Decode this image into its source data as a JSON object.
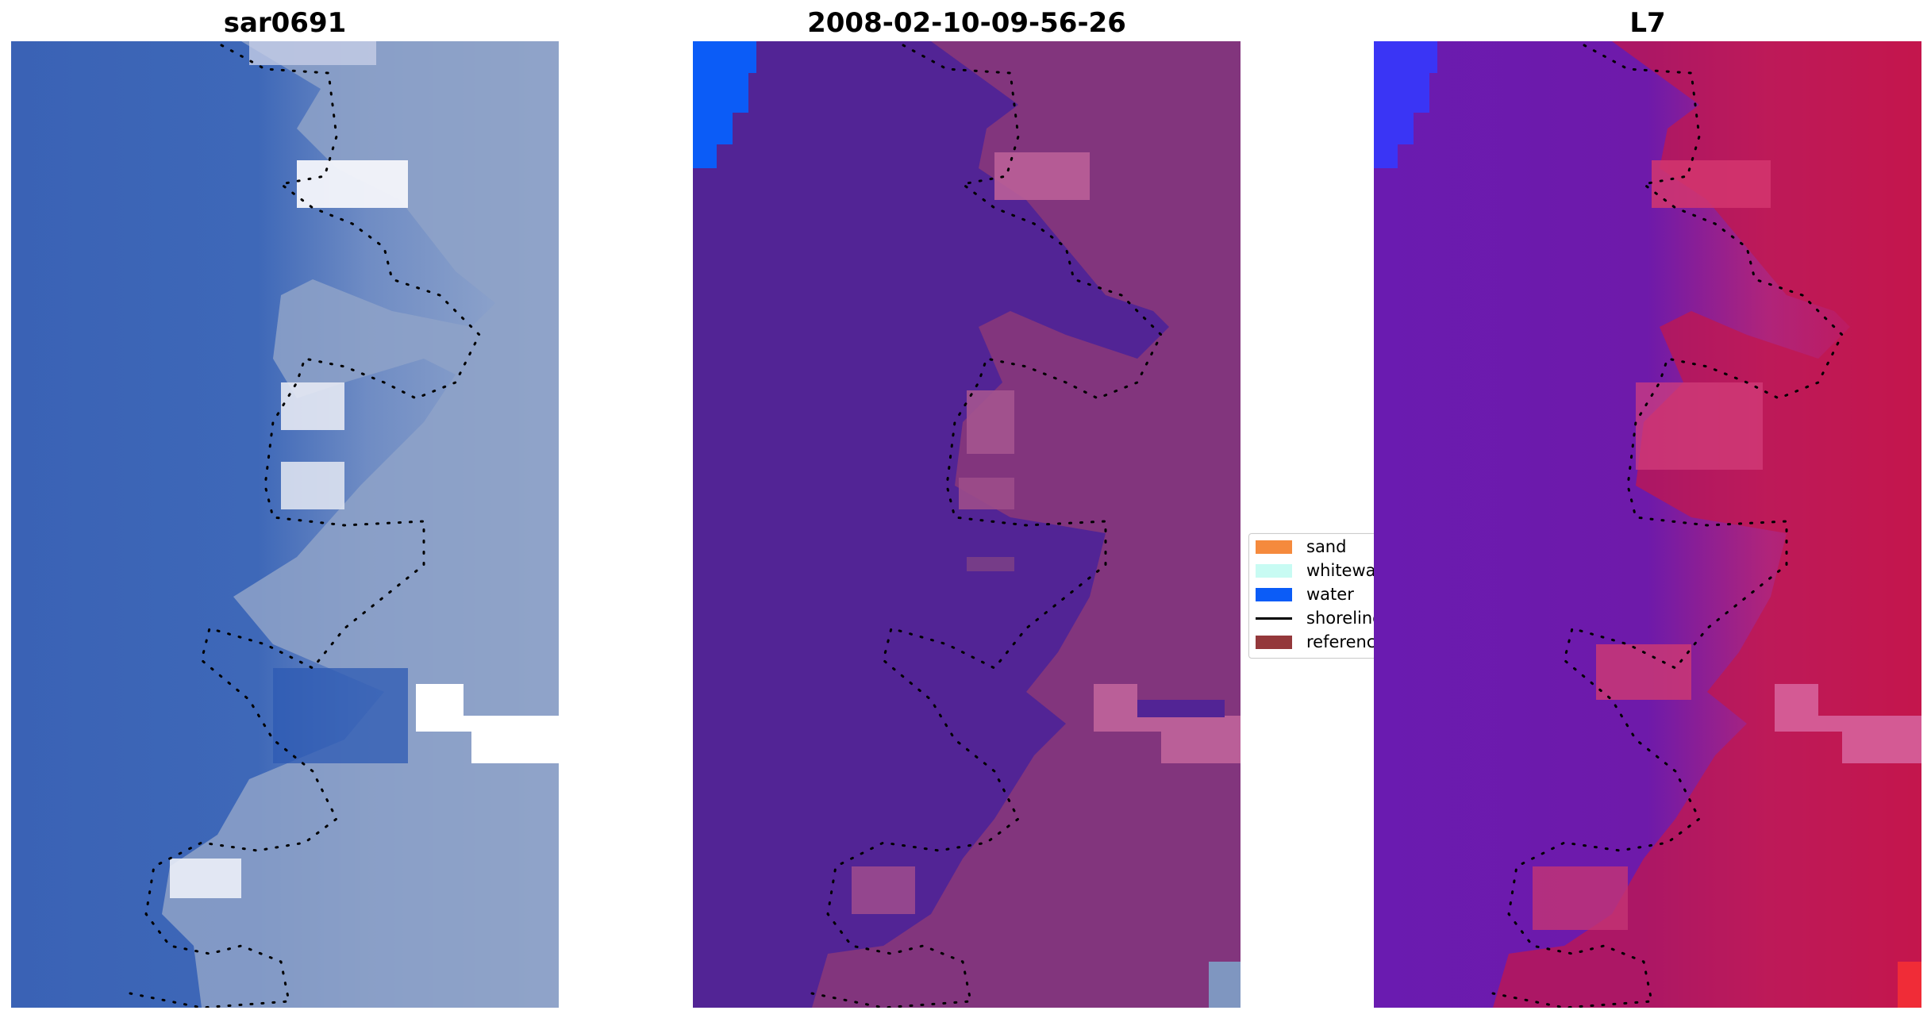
{
  "panels": [
    {
      "title": "sar0691",
      "icon": "rgb-image"
    },
    {
      "title": "2008-02-10-09-56-26",
      "icon": "classified-image"
    },
    {
      "title": "L7",
      "icon": "mndwi-image"
    }
  ],
  "legend": {
    "items": [
      {
        "label": "sand",
        "color": "#f58a3d"
      },
      {
        "label": "whitewater",
        "color": "#c8fbf3"
      },
      {
        "label": "water",
        "color": "#0b5cf7"
      },
      {
        "label": "shoreline",
        "color": "#000000"
      },
      {
        "label": "reference",
        "color": "#94383b"
      }
    ]
  },
  "colors": {
    "rgb_water": "#3d66b8",
    "rgb_land": "#8fa4c9",
    "rgb_cloud": "#f4f6fb",
    "class_sea": "#522495",
    "class_land": "#82357d",
    "class_water": "#0b5cf7",
    "class_pink": "#ba5f98",
    "mndwi_sea": "#6a1bb0",
    "mndwi_land": "#c2174e",
    "mndwi_pink": "#d45a94"
  }
}
